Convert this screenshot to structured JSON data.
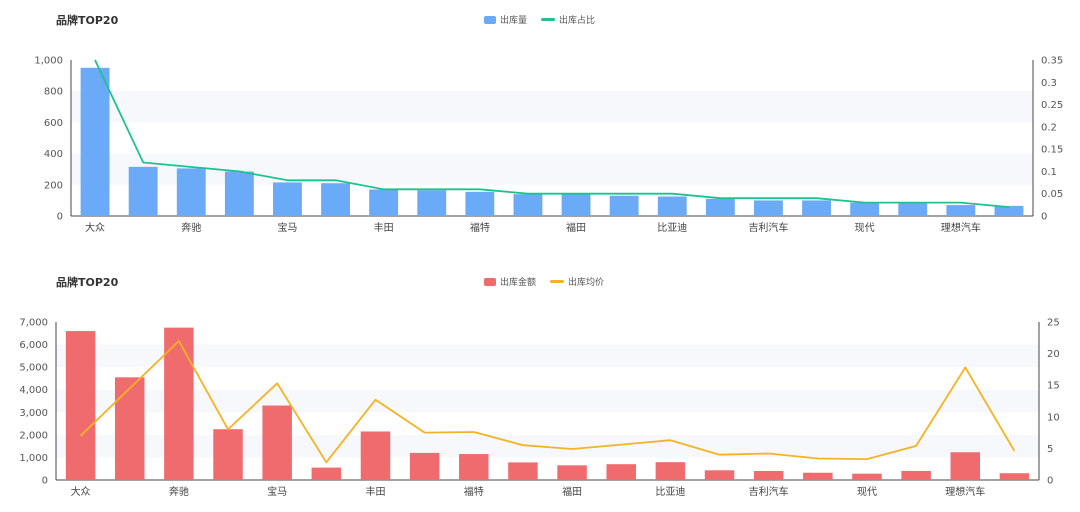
{
  "chart_data": [
    {
      "type": "bar",
      "title": "品牌TOP20",
      "categories": [
        "大众",
        "",
        "奔驰",
        "",
        "宝马",
        "",
        "丰田",
        "",
        "福特",
        "",
        "福田",
        "",
        "比亚迪",
        "",
        "吉利汽车",
        "",
        "现代",
        "",
        "理想汽车",
        ""
      ],
      "series": [
        {
          "name": "出库量",
          "kind": "bar",
          "axis": "left",
          "color": "#6aaaf7",
          "values": [
            950,
            315,
            305,
            285,
            215,
            210,
            170,
            165,
            155,
            140,
            140,
            130,
            125,
            110,
            100,
            100,
            85,
            80,
            70,
            65
          ]
        },
        {
          "name": "出库占比",
          "kind": "line",
          "axis": "right",
          "color": "#1ec28e",
          "values": [
            0.35,
            0.12,
            0.11,
            0.1,
            0.08,
            0.08,
            0.06,
            0.06,
            0.06,
            0.05,
            0.05,
            0.05,
            0.05,
            0.04,
            0.04,
            0.04,
            0.03,
            0.03,
            0.03,
            0.02
          ]
        }
      ],
      "ylim_left": [
        0,
        1000
      ],
      "ylim_right": [
        0,
        0.35
      ],
      "yticks_left": [
        "0",
        "200",
        "400",
        "600",
        "800",
        "1,000"
      ],
      "yticks_right": [
        "0",
        "0.05",
        "0.1",
        "0.15",
        "0.2",
        "0.25",
        "0.3",
        "0.35"
      ],
      "legend_position": "top-center"
    },
    {
      "type": "bar",
      "title": "品牌TOP20",
      "categories": [
        "大众",
        "",
        "奔驰",
        "",
        "宝马",
        "",
        "丰田",
        "",
        "福特",
        "",
        "福田",
        "",
        "比亚迪",
        "",
        "吉利汽车",
        "",
        "现代",
        "",
        "理想汽车",
        ""
      ],
      "series": [
        {
          "name": "出库金额",
          "kind": "bar",
          "axis": "left",
          "color": "#f06b6e",
          "values": [
            6600,
            4550,
            6750,
            2250,
            3300,
            550,
            2150,
            1200,
            1150,
            780,
            650,
            700,
            790,
            430,
            400,
            320,
            280,
            400,
            1230,
            300
          ]
        },
        {
          "name": "出库均价",
          "kind": "line",
          "axis": "right",
          "color": "#f5b324",
          "values": [
            7,
            14.5,
            22,
            8,
            15.3,
            2.8,
            12.7,
            7.5,
            7.6,
            5.5,
            4.9,
            5.6,
            6.3,
            4,
            4.2,
            3.4,
            3.3,
            5.4,
            17.8,
            4.6
          ]
        }
      ],
      "ylim_left": [
        0,
        7000
      ],
      "ylim_right": [
        0,
        25
      ],
      "yticks_left": [
        "0",
        "1,000",
        "2,000",
        "3,000",
        "4,000",
        "5,000",
        "6,000",
        "7,000"
      ],
      "yticks_right": [
        "0",
        "5",
        "10",
        "15",
        "20",
        "25"
      ],
      "legend_position": "top-center"
    }
  ]
}
